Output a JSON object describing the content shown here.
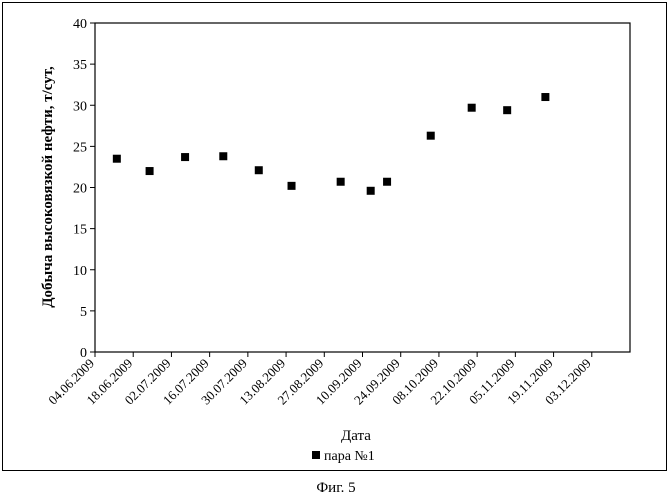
{
  "chart_data": {
    "type": "scatter",
    "title": "",
    "xlabel": "Дата",
    "ylabel": "Добыча высоковязкой нефти, т/сут,",
    "x_tick_labels": [
      "04.06.2009",
      "18.06.2009",
      "02.07.2009",
      "16.07.2009",
      "30.07.2009",
      "13.08.2009",
      "27.08.2009",
      "10.09.2009",
      "24.09.2009",
      "08.10.2009",
      "22.10.2009",
      "05.11.2009",
      "19.11.2009",
      "03.12.2009"
    ],
    "xlim": [
      "04.06.2009",
      "17.12.2009"
    ],
    "ylim": [
      0,
      40
    ],
    "y_ticks": [
      0,
      5,
      10,
      15,
      20,
      25,
      30,
      35,
      40
    ],
    "grid": false,
    "legend_position": "bottom",
    "marker": "square",
    "series": [
      {
        "name": "пара №1",
        "color": "#000000",
        "points": [
          {
            "x": "12.06.2009",
            "y": 23.5
          },
          {
            "x": "24.06.2009",
            "y": 22.0
          },
          {
            "x": "07.07.2009",
            "y": 23.7
          },
          {
            "x": "21.07.2009",
            "y": 23.8
          },
          {
            "x": "03.08.2009",
            "y": 22.1
          },
          {
            "x": "15.08.2009",
            "y": 20.2
          },
          {
            "x": "02.09.2009",
            "y": 20.7
          },
          {
            "x": "13.09.2009",
            "y": 19.6
          },
          {
            "x": "19.09.2009",
            "y": 20.7
          },
          {
            "x": "05.10.2009",
            "y": 26.3
          },
          {
            "x": "20.10.2009",
            "y": 29.7
          },
          {
            "x": "02.11.2009",
            "y": 29.4
          },
          {
            "x": "16.11.2009",
            "y": 31.0
          }
        ]
      }
    ]
  },
  "figure_caption": "Фиг. 5"
}
